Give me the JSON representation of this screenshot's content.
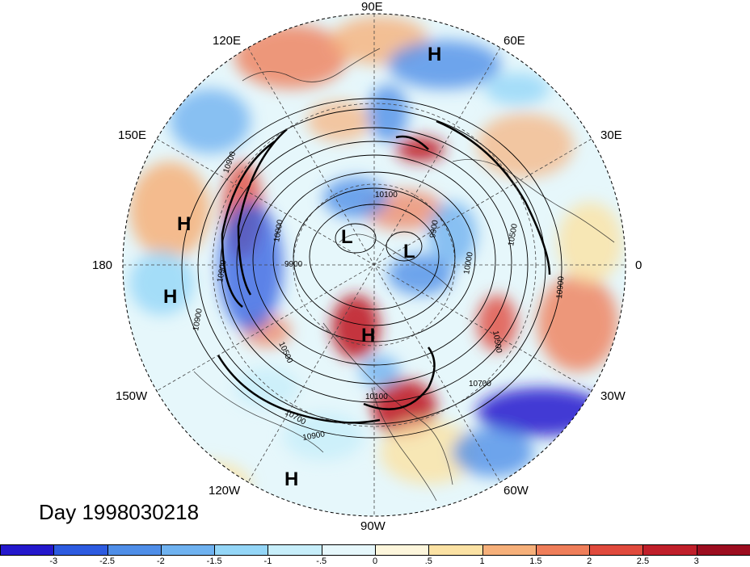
{
  "title": "Day 1998030218",
  "longitude_labels": {
    "top": "90E",
    "top_right": "60E",
    "right_upper": "30E",
    "right": "0",
    "right_lower": "30W",
    "bottom_right": "60W",
    "bottom": "90W",
    "bottom_left": "120W",
    "left_lower": "150W",
    "left": "180",
    "left_upper": "150E",
    "top_left": "120E"
  },
  "pressure_centers": [
    {
      "type": "H"
    },
    {
      "type": "H"
    },
    {
      "type": "H"
    },
    {
      "type": "H"
    },
    {
      "type": "H"
    },
    {
      "type": "L"
    },
    {
      "type": "L"
    }
  ],
  "contour_labels": [
    "10100",
    "10000",
    "9900",
    "10500",
    "10900",
    "10700",
    "10900",
    "10100",
    "10700",
    "10900",
    "10500",
    "10900",
    "10500",
    "9900",
    "10000",
    "10900"
  ],
  "colorbar": {
    "ticks": [
      "-3",
      "-2.5",
      "-2",
      "-1.5",
      "-1",
      "-.5",
      "0",
      ".5",
      "1",
      "1.5",
      "2",
      "2.5",
      "3"
    ],
    "colors": [
      "#2418cc",
      "#2d5be0",
      "#4f8ee8",
      "#6fb2f0",
      "#94d6f7",
      "#c7eefa",
      "#e6f7fb",
      "#fdf6dc",
      "#fbe2a4",
      "#f6b07a",
      "#ef7e5a",
      "#e04a3d",
      "#c01f2a",
      "#9c0d1f"
    ]
  },
  "colors": {
    "contour": "#000000",
    "grid": "#444444",
    "background_cold": "#4f8ee8",
    "background_warm": "#ef7e5a"
  }
}
